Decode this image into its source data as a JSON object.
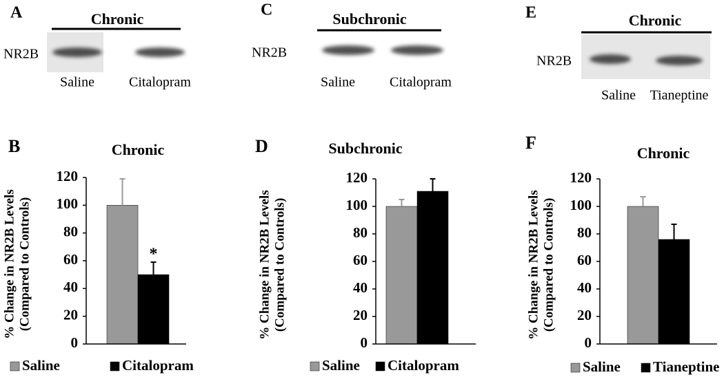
{
  "blots": [
    {
      "letter": "A",
      "title": "Chronic",
      "label": "NR2B",
      "lanes": [
        "Saline",
        "Citalopram"
      ]
    },
    {
      "letter": "C",
      "title": "Subchronic",
      "label": "NR2B",
      "lanes": [
        "Saline",
        "Citalopram"
      ]
    },
    {
      "letter": "E",
      "title": "Chronic",
      "label": "NR2B",
      "lanes": [
        "Saline",
        "Tianeptine"
      ]
    }
  ],
  "chart_data": [
    {
      "type": "bar",
      "letter": "B",
      "title": "Chronic",
      "ylabel": [
        "% Change in NR2B Levels",
        "(Compared to Controls)"
      ],
      "ylim": [
        0,
        120
      ],
      "yticks": [
        0,
        20,
        40,
        60,
        80,
        100,
        120
      ],
      "series": [
        {
          "name": "Saline",
          "color": "#999999",
          "values": [
            100
          ],
          "errors": [
            19
          ]
        },
        {
          "name": "Citalopram",
          "color": "#000000",
          "values": [
            50
          ],
          "errors": [
            9
          ]
        }
      ],
      "annotations": [
        "*"
      ]
    },
    {
      "type": "bar",
      "letter": "D",
      "title": "Subchronic",
      "ylabel": [
        "% Change in NR2B Levels",
        "(Compared to Controls)"
      ],
      "ylim": [
        0,
        120
      ],
      "yticks": [
        0,
        20,
        40,
        60,
        80,
        100,
        120
      ],
      "series": [
        {
          "name": "Saline",
          "color": "#999999",
          "values": [
            100
          ],
          "errors": [
            5
          ]
        },
        {
          "name": "Citalopram",
          "color": "#000000",
          "values": [
            111
          ],
          "errors": [
            9
          ]
        }
      ]
    },
    {
      "type": "bar",
      "letter": "F",
      "title": "Chronic",
      "ylabel": [
        "% Change in NR2B Levels",
        "(Compared to Controls)"
      ],
      "ylim": [
        0,
        120
      ],
      "yticks": [
        0,
        20,
        40,
        60,
        80,
        100,
        120
      ],
      "series": [
        {
          "name": "Saline",
          "color": "#999999",
          "values": [
            100
          ],
          "errors": [
            7
          ]
        },
        {
          "name": "Tianeptine",
          "color": "#000000",
          "values": [
            76
          ],
          "errors": [
            11
          ]
        }
      ]
    }
  ]
}
